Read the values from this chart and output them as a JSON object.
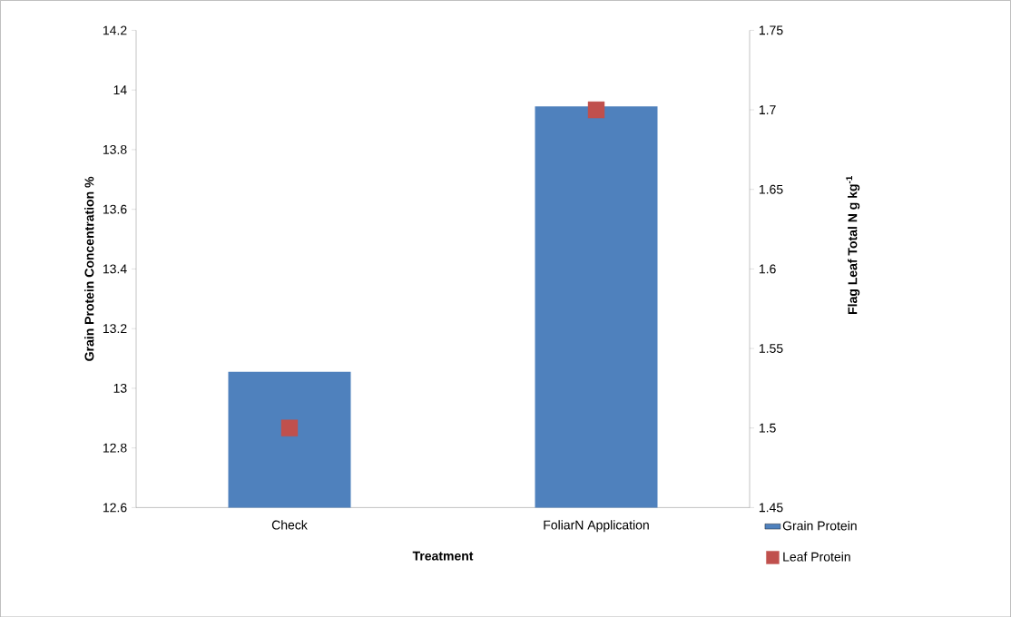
{
  "chart_data": {
    "type": "bar",
    "xlabel": "Treatment",
    "ylabel": "Grain Protein Concentration %",
    "y2label": "Flag Leaf Total N g kg$^{-1}$",
    "categories": [
      "Check",
      "FoliarN Application"
    ],
    "series": [
      {
        "name": "Grain Protein",
        "color": "#4f81bd",
        "values": [
          13.055,
          13.945
        ]
      },
      {
        "name": "Leaf Protein",
        "type": "scatter",
        "axis": "y2",
        "marker": "square",
        "color": "#c0504d",
        "values": [
          1.5,
          1.7
        ]
      }
    ],
    "ylim": [
      12.6,
      14.2
    ],
    "yticks": [
      12.6,
      12.8,
      13,
      13.2,
      13.4,
      13.6,
      13.8,
      14,
      14.2
    ],
    "y2lim": [
      1.45,
      1.75
    ],
    "y2ticks": [
      1.45,
      1.5,
      1.55,
      1.6,
      1.65,
      1.7,
      1.75
    ],
    "grid": false,
    "legend": "right"
  }
}
